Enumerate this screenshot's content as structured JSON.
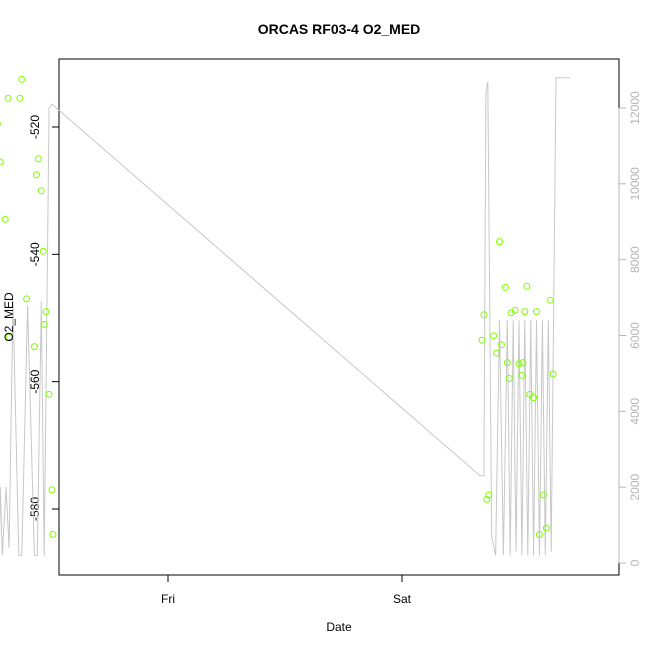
{
  "chart_data": {
    "type": "scatter",
    "title": "ORCAS RF03-4 O2_MED",
    "xlabel": "Date",
    "ylabel": "O2_MED",
    "x_ticks": [
      "Fri",
      "Sat"
    ],
    "left_axis": {
      "ylim": [
        -590,
        -510
      ],
      "ticks": [
        -520,
        -540,
        -560,
        -580
      ]
    },
    "right_axis": {
      "ylim": [
        0,
        12800
      ],
      "ticks": [
        0,
        2000,
        4000,
        6000,
        8000,
        10000,
        12000
      ],
      "color": "#b5b5b5"
    },
    "grid": false,
    "points_color": "#7fff00",
    "line_color": "#c8c8c8",
    "series": [
      {
        "kind": "points",
        "axis": "left",
        "x_hours": [
          -21.0,
          -20.2,
          -18.7,
          -18.55,
          -18.3,
          -18.15,
          -18.05,
          -17.8,
          -17.7,
          -17.5,
          -17.2,
          -16.7,
          -16.4,
          -16.3,
          -15.2,
          -15.0,
          -14.5,
          -13.7,
          -13.5,
          -13.3,
          -13.0,
          -12.8,
          -12.7,
          -12.5,
          -12.2,
          -11.9
        ],
        "y": [
          -564.5,
          -562.5,
          -587.5,
          -566,
          -558,
          -556,
          -516.5,
          -526,
          -513.5,
          -519.5,
          -525.5,
          -534.5,
          -515.5,
          -553,
          -515.5,
          -512.5,
          -547,
          -554.5,
          -527.5,
          -525,
          -530,
          -539.5,
          -551,
          -549,
          -562,
          -577
        ]
      },
      {
        "kind": "points",
        "axis": "left",
        "x_hours": [
          -11.8,
          32.2,
          32.4,
          32.7,
          32.9,
          33.4,
          33.7,
          34.0,
          34.2,
          34.6,
          34.8,
          35.0,
          35.2,
          35.6,
          36.0,
          36.3,
          36.4,
          36.6,
          36.8,
          37.1,
          37.5,
          37.8,
          38.1,
          38.5,
          38.8,
          39.2,
          39.5
        ],
        "y": [
          -584,
          -553.5,
          -549.5,
          -578.5,
          -577.8,
          -552.8,
          -555.5,
          -538,
          -554.2,
          -545.2,
          -557,
          -559.5,
          -549.2,
          -548.8,
          -557.2,
          -559,
          -557,
          -549,
          -545,
          -562,
          -562.5,
          -549,
          -584,
          -577.8,
          -583,
          -547.2,
          -558.8
        ]
      },
      {
        "kind": "line",
        "axis": "right",
        "x_hours": [
          -21.0,
          -17.8,
          -17.6,
          -17.3,
          -17.2,
          -17.0,
          -16.6,
          -16.3,
          -15.9,
          -15.3,
          -15.0,
          -14.4,
          -13.7,
          -13.4,
          -13.0,
          -12.7,
          -12.2,
          -11.9,
          32.0,
          32.2,
          32.4,
          32.6,
          32.8,
          33.2,
          33.6,
          34.0,
          34.4,
          34.8,
          35.1,
          35.4,
          35.7,
          36.0,
          36.3,
          36.6,
          36.9,
          37.2,
          37.5,
          37.8,
          38.1,
          38.4,
          38.7,
          39.0,
          39.3,
          39.8,
          40.3,
          40.6,
          40.9,
          41.2
        ],
        "y": [
          2900,
          11900,
          1800,
          300,
          2000,
          200,
          2000,
          400,
          6900,
          200,
          200,
          6800,
          200,
          200,
          6900,
          200,
          12000,
          12100,
          2300,
          2300,
          2300,
          12400,
          12700,
          700,
          200,
          6400,
          200,
          6400,
          200,
          6400,
          300,
          6400,
          200,
          6400,
          200,
          6400,
          200,
          6400,
          200,
          6400,
          200,
          6400,
          300,
          12800,
          12800,
          12800,
          12800,
          12800
        ]
      }
    ]
  }
}
